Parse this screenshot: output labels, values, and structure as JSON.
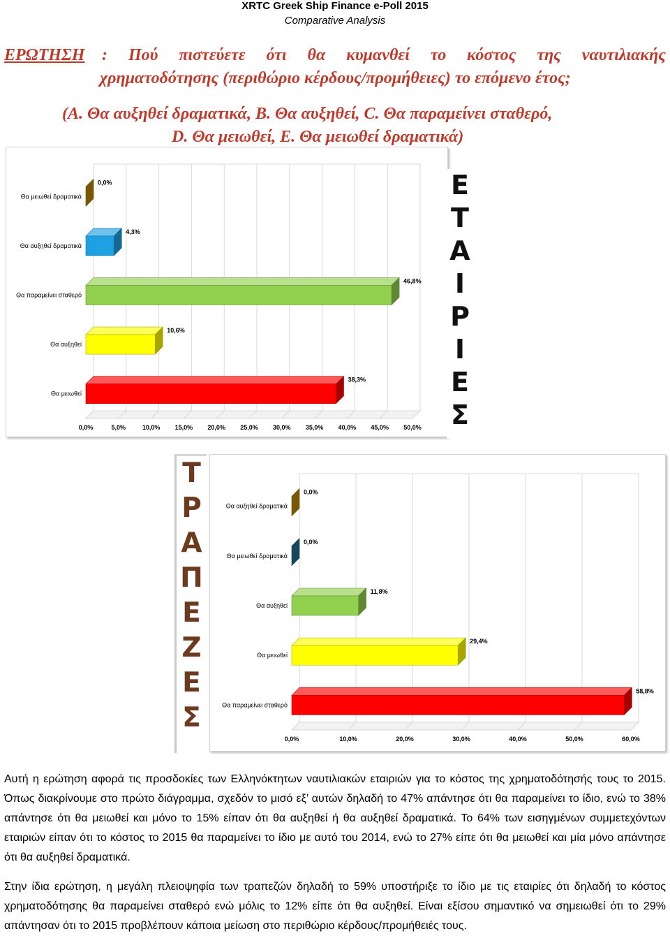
{
  "header": {
    "title": "XRTC Greek Ship Finance e-Poll 2015",
    "subtitle": "Comparative Analysis"
  },
  "question": {
    "label": "ΕΡΩΤΗΣΗ",
    "line1": ": Πού πιστεύετε ότι θα κυμανθεί το κόστος της ναυτιλιακής",
    "line2": "χρηματοδότησης (περιθώριο κέρδους/προμήθειες) το επόμενο έτος;",
    "line3": "(A. Θα αυξηθεί δραματικά, B. Θα αυξηθεί, C. Θα παραμείνει σταθερό,",
    "line4": "D. Θα μειωθεί, E. Θα μειωθεί δραματικά)"
  },
  "vertical_labels": {
    "companies": [
      "Ε",
      "Τ",
      "Α",
      "Ι",
      "Ρ",
      "Ι",
      "Ε",
      "Σ"
    ],
    "banks": [
      "Τ",
      "Ρ",
      "Α",
      "Π",
      "Ε",
      "Ζ",
      "Ε",
      "Σ"
    ]
  },
  "colors": {
    "question": "#c0392b",
    "gold": "#b8860b",
    "blue": "#1da1e2",
    "teal": "#1f6f8b",
    "green": "#92d050",
    "yellow": "#ffff00",
    "red": "#ff0000"
  },
  "chart_data": [
    {
      "type": "bar",
      "orientation": "horizontal",
      "categories": [
        "Θα μειωθεί δραματικά",
        "Θα αυξηθεί δραματικά",
        "Θα παραμείνει σταθερό",
        "Θα αυξηθεί",
        "Θα μειωθεί"
      ],
      "values": [
        0.0,
        4.3,
        46.8,
        10.6,
        38.3
      ],
      "value_labels": [
        "0,0%",
        "4,3%",
        "46,8%",
        "10,6%",
        "38,3%"
      ],
      "bar_colors": [
        "#b8860b",
        "#1da1e2",
        "#92d050",
        "#ffff00",
        "#ff0000"
      ],
      "xlim": [
        0,
        50
      ],
      "xticks": [
        "0,0%",
        "5,0%",
        "10,0%",
        "15,0%",
        "20,0%",
        "25,0%",
        "30,0%",
        "35,0%",
        "40,0%",
        "45,0%",
        "50,0%"
      ],
      "grid": true,
      "legend": "none"
    },
    {
      "type": "bar",
      "orientation": "horizontal",
      "categories": [
        "Θα αυξηθεί δραματικά",
        "Θα μειωθεί δραματικά",
        "Θα αυξηθεί",
        "Θα μειωθεί",
        "Θα παραμείνει σταθερό"
      ],
      "values": [
        0.0,
        0.0,
        11.8,
        29.4,
        58.8
      ],
      "value_labels": [
        "0,0%",
        "0,0%",
        "11,8%",
        "29,4%",
        "58,8%"
      ],
      "bar_colors": [
        "#b8860b",
        "#1f6f8b",
        "#92d050",
        "#ffff00",
        "#ff0000"
      ],
      "xlim": [
        0,
        60
      ],
      "xticks": [
        "0,0%",
        "10,0%",
        "20,0%",
        "30,0%",
        "40,0%",
        "50,0%",
        "60,0%"
      ],
      "grid": true,
      "legend": "none"
    }
  ],
  "paragraphs": {
    "p1": "Αυτή η ερώτηση αφορά τις προσδοκίες των Ελληνόκτητων ναυτιλιακών εταιριών για το κόστος της χρηματοδότησής τους το 2015. Όπως διακρίνουμε στο πρώτο διάγραμμα, σχεδόν το μισό εξ’ αυτών δηλαδή το 47% απάντησε ότι θα παραμείνει το ίδιο, ενώ το 38% απάντησε ότι θα μειωθεί και μόνο το 15% είπαν ότι θα αυξηθεί ή θα αυξηθεί δραματικά. Το 64% των εισηγμένων συμμετεχόντων εταιριών είπαν ότι το κόστος το 2015 θα παραμείνει το ίδιο με αυτό του 2014, ενώ το 27% είπε ότι θα μειωθεί και μία μόνο απάντησε ότι θα αυξηθεί δραματικά.",
    "p2": "Στην ίδια ερώτηση, η μεγάλη πλειοψηφία των τραπεζών δηλαδή το 59% υποστήριξε το ίδιο με τις εταιρίες ότι δηλαδή το κόστος χρηματοδότησης θα παραμείνει σταθερό ενώ μόλις το 12% είπε ότι θα αυξηθεί. Είναι εξίσου σημαντικό να σημειωθεί ότι το 29% απάντησαν ότι το 2015 προβλέπουν κάποια μείωση στο περιθώριο κέρδους/προμήθειές τους."
  }
}
